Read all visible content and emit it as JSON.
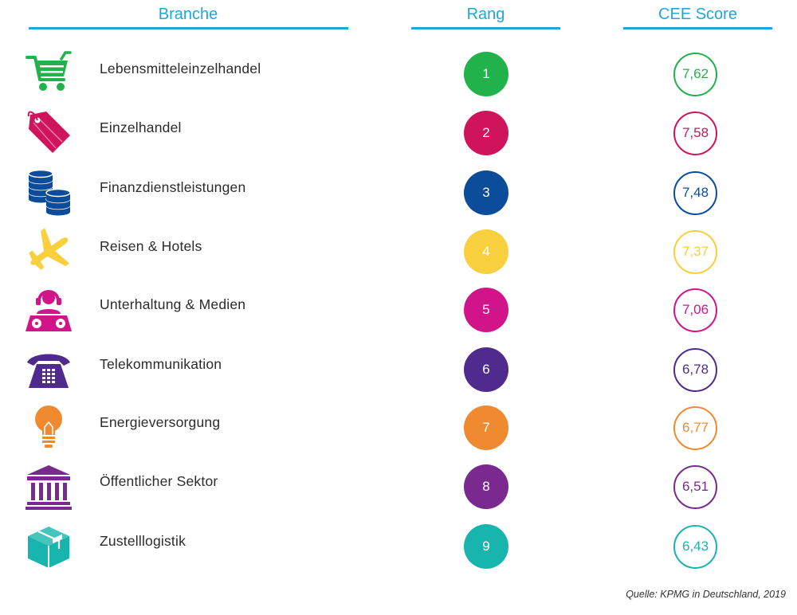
{
  "headers": {
    "branche": "Branche",
    "rang": "Rang",
    "score": "CEE Score"
  },
  "colors": {
    "header": "#1fa7d8"
  },
  "source": "Quelle: KPMG in Deutschland, 2019",
  "chart_data": {
    "type": "table",
    "columns": [
      "Branche",
      "Rang",
      "CEE Score"
    ],
    "rows": [
      {
        "branche": "Lebensmitteleinzelhandel",
        "rang": "1",
        "score": "7,62",
        "color": "#22b24c",
        "icon": "shopping-cart-icon"
      },
      {
        "branche": "Einzelhandel",
        "rang": "2",
        "score": "7,58",
        "color": "#d0145c",
        "icon": "price-tag-icon"
      },
      {
        "branche": "Finanzdienstleistungen",
        "rang": "3",
        "score": "7,48",
        "color": "#0b4d9a",
        "icon": "coins-icon"
      },
      {
        "branche": "Reisen & Hotels",
        "rang": "4",
        "score": "7,37",
        "color": "#f8cf3c",
        "icon": "airplane-icon"
      },
      {
        "branche": "Unterhaltung & Medien",
        "rang": "5",
        "score": "7,06",
        "color": "#d1148a",
        "icon": "dj-icon"
      },
      {
        "branche": "Telekommunikation",
        "rang": "6",
        "score": "6,78",
        "color": "#4f2b8e",
        "icon": "telephone-icon"
      },
      {
        "branche": "Energieversorgung",
        "rang": "7",
        "score": "6,77",
        "color": "#f08a30",
        "icon": "light-bulb-icon"
      },
      {
        "branche": "Öffentlicher Sektor",
        "rang": "8",
        "score": "6,51",
        "color": "#7a2a8e",
        "icon": "government-building-icon"
      },
      {
        "branche": "Zustelllogistik",
        "rang": "9",
        "score": "6,43",
        "color": "#18b5ae",
        "icon": "package-box-icon"
      }
    ]
  }
}
